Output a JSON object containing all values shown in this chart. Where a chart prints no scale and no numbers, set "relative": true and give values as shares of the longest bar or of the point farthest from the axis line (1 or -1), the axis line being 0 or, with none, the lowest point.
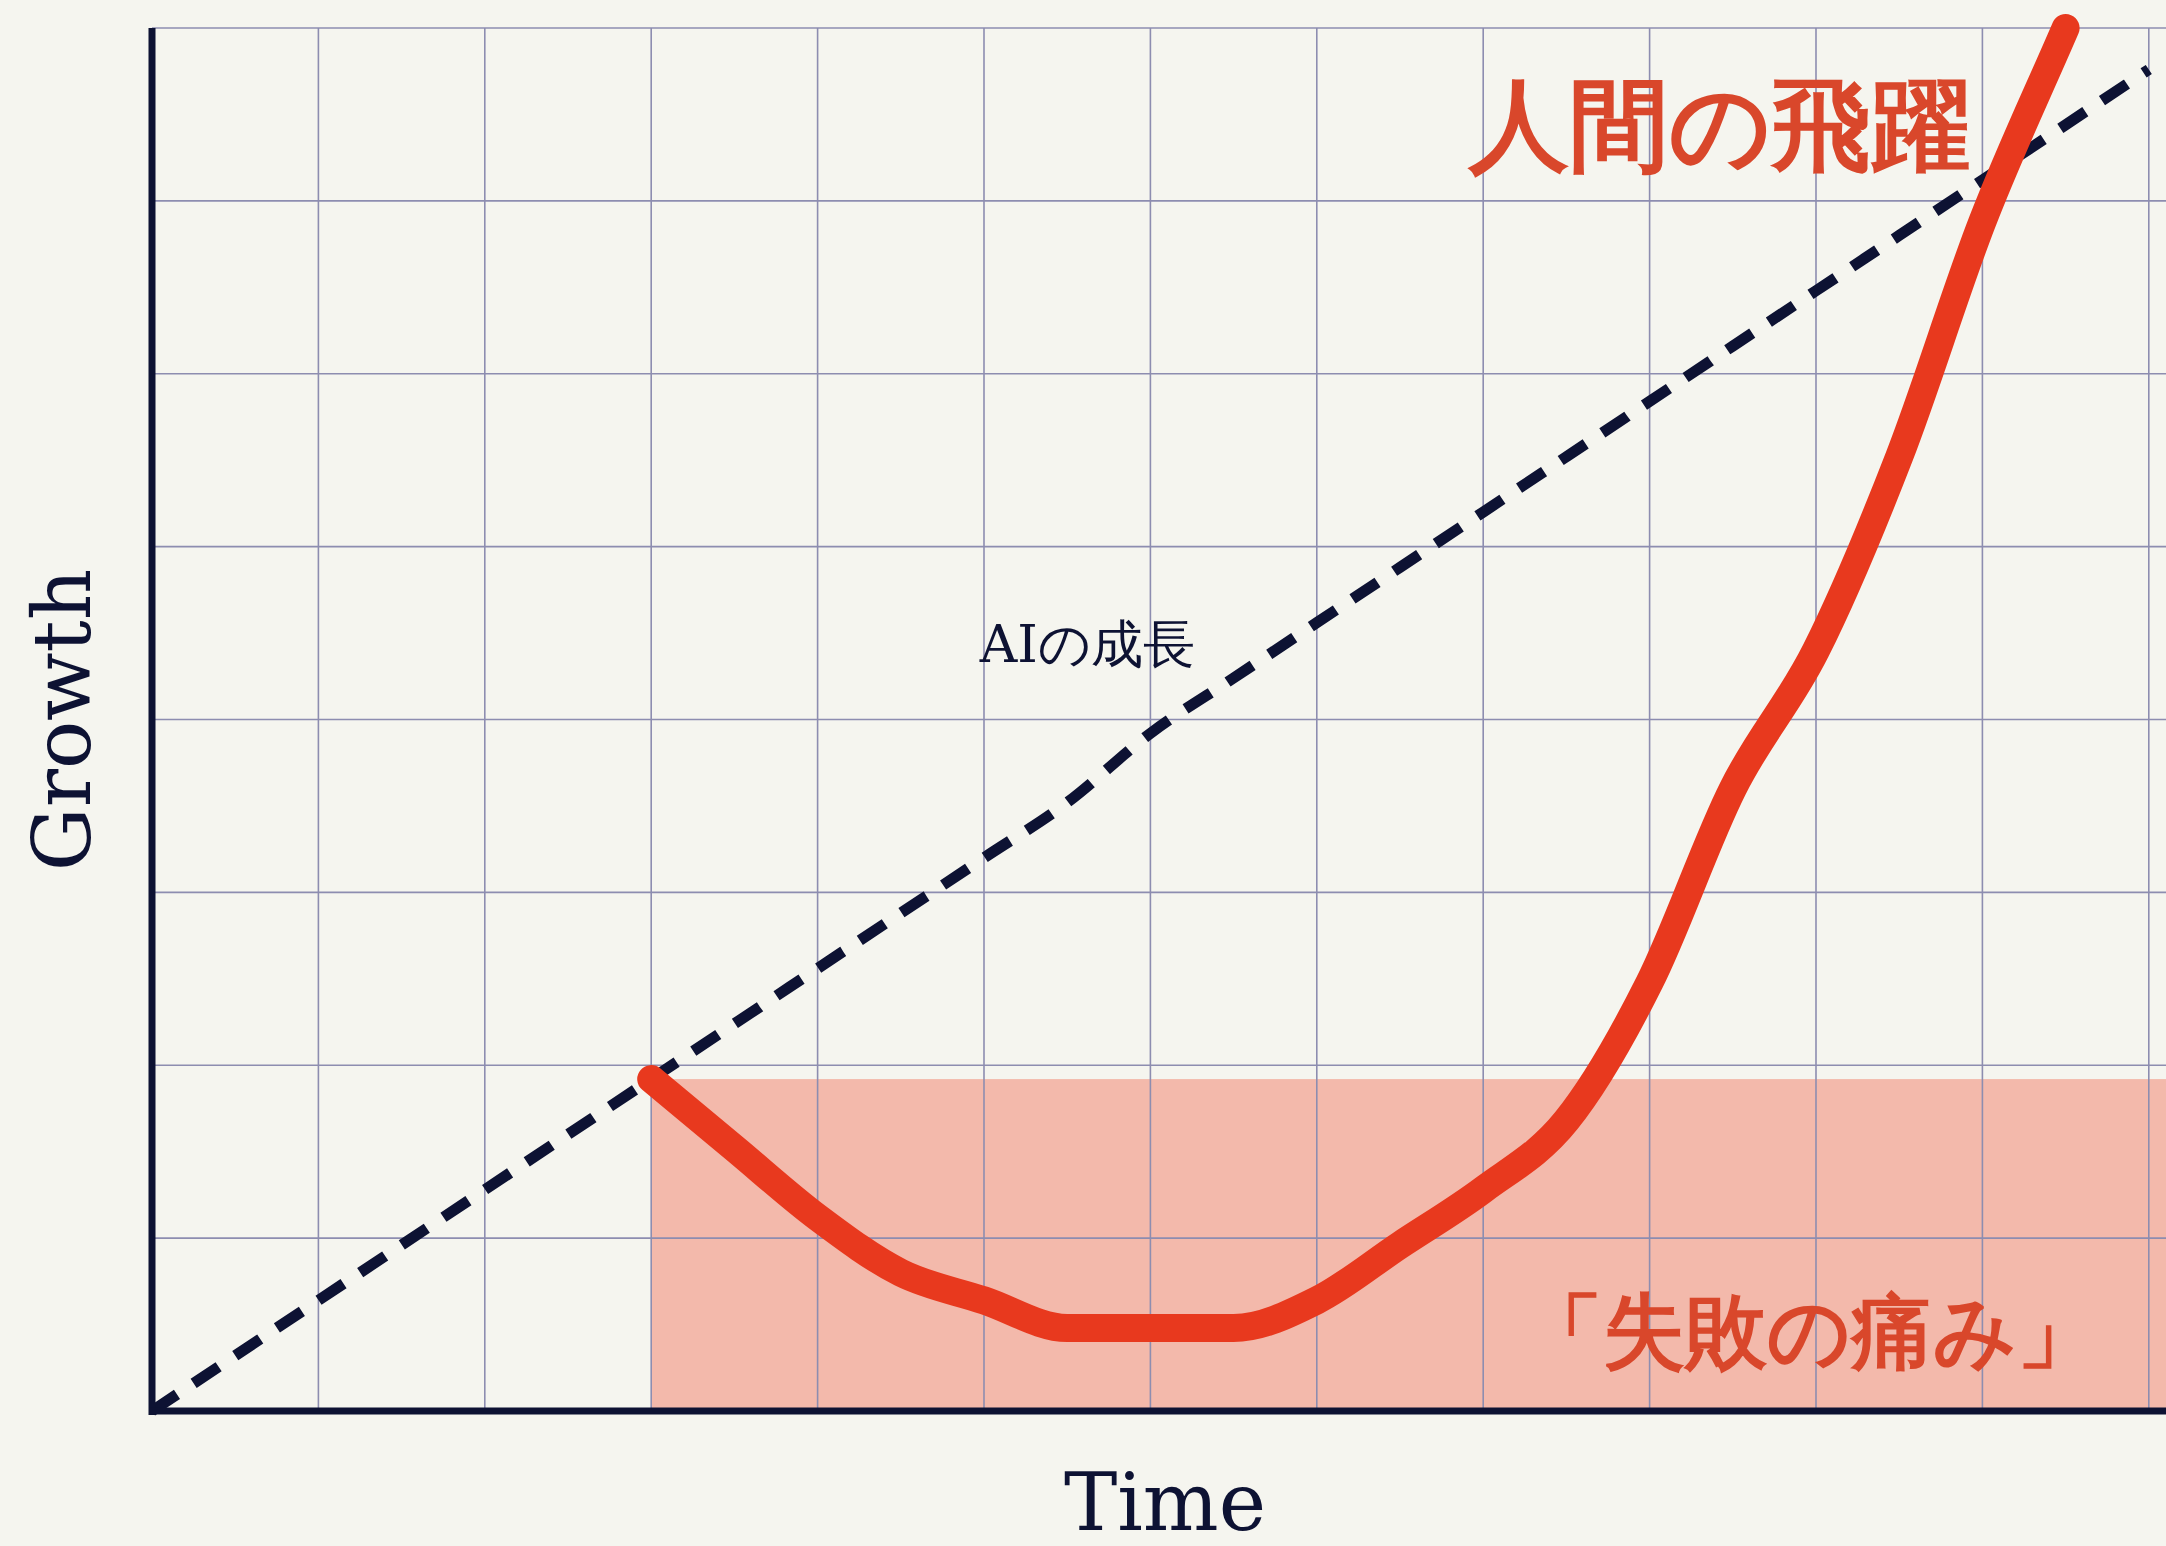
{
  "chart_data": {
    "type": "line",
    "relative": true,
    "xlabel": "Time",
    "ylabel": "Growth",
    "grid": true,
    "categories": [
      null,
      null,
      null,
      null,
      null,
      null,
      null,
      null,
      null,
      null,
      null,
      null,
      null,
      null,
      null,
      null,
      null,
      null,
      null,
      null,
      null,
      null,
      null,
      null,
      null
    ],
    "series": [
      {
        "name": "AIの成長",
        "color": "#0d1233",
        "line_style": "dashed",
        "values": [
          0,
          0.04,
          0.08,
          0.12,
          0.16,
          0.2,
          0.24,
          0.28,
          0.32,
          0.36,
          0.4,
          0.44,
          0.49,
          0.53,
          0.57,
          0.61,
          0.65,
          0.69,
          0.73,
          0.77,
          0.81,
          0.85,
          0.89,
          0.93,
          0.97
        ]
      },
      {
        "name": "人間の飛躍",
        "color": "#e8391e",
        "line_style": "solid",
        "values": [
          null,
          null,
          null,
          null,
          null,
          null,
          0.24,
          0.19,
          0.14,
          0.1,
          0.08,
          0.06,
          0.06,
          0.06,
          0.08,
          0.12,
          0.16,
          0.21,
          0.31,
          0.45,
          0.55,
          0.69,
          0.86,
          1.0,
          null
        ]
      }
    ],
    "bands": [
      {
        "axis": "y",
        "from": 0,
        "to": 0.24,
        "label": "「失敗の痛み」",
        "color": "#f3b9ab"
      }
    ]
  }
}
